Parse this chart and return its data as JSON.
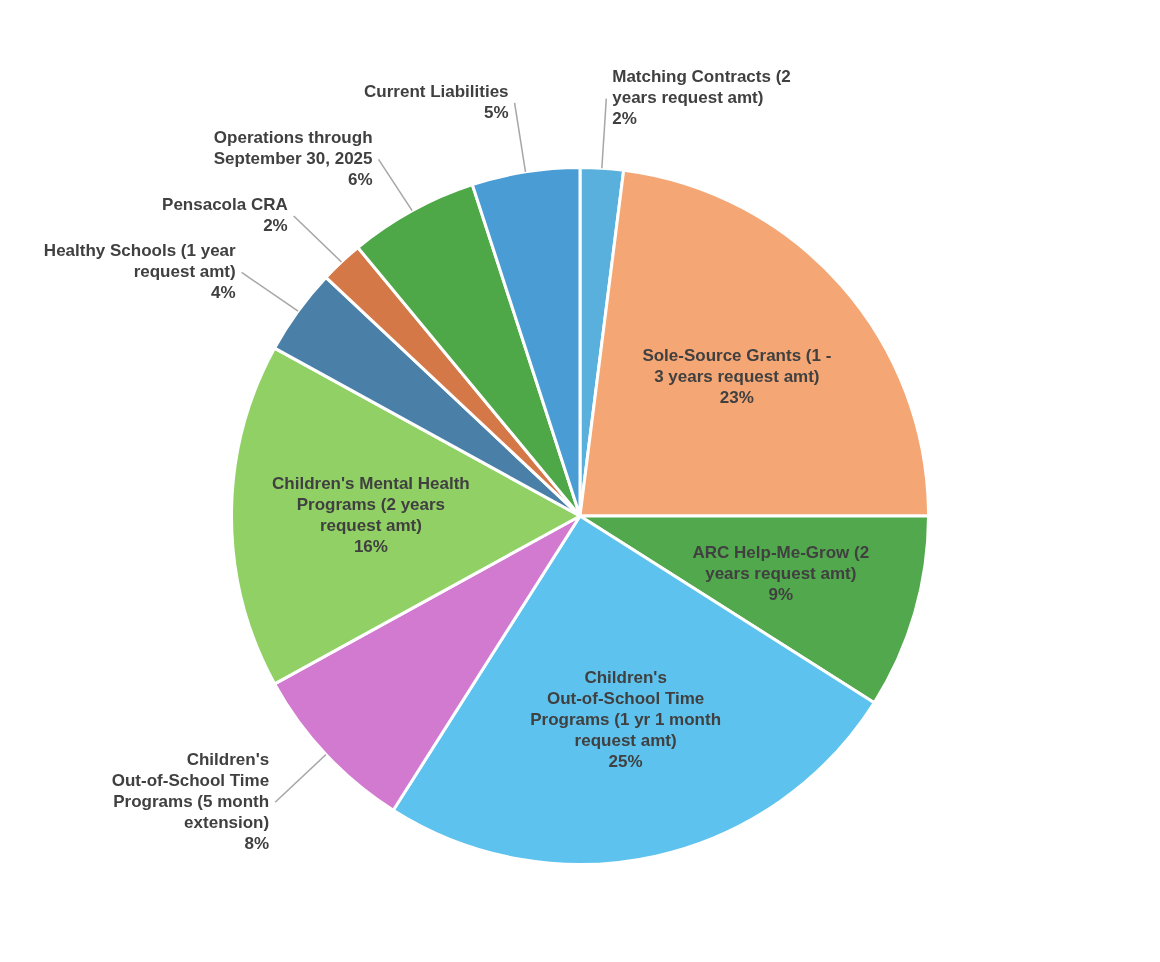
{
  "chart_data": {
    "type": "pie",
    "categories": [
      "Matching Contracts (2 years request amt)",
      "Sole-Source Grants (1 - 3 years request amt)",
      "ARC Help-Me-Grow (2 years request amt)",
      "Children's Out-of-School Time Programs (1 yr 1 month request amt)",
      "Children's Out-of-School Time Programs (5 month extension)",
      "Children's Mental Health Programs (2 years request amt)",
      "Healthy Schools (1 year request amt)",
      "Pensacola CRA",
      "Operations through September 30, 2025",
      "Current Liabilities"
    ],
    "values": [
      2,
      23,
      9,
      25,
      8,
      16,
      4,
      2,
      6,
      5
    ],
    "value_labels": [
      "2%",
      "23%",
      "9%",
      "25%",
      "8%",
      "16%",
      "4%",
      "2%",
      "6%",
      "5%"
    ],
    "colors": [
      "#5ab0dc",
      "#f4a674",
      "#52a84c",
      "#5ec2ee",
      "#d27ad0",
      "#90d064",
      "#4a80a8",
      "#d47848",
      "#4ea848",
      "#4a9cd4"
    ],
    "legend": false
  }
}
